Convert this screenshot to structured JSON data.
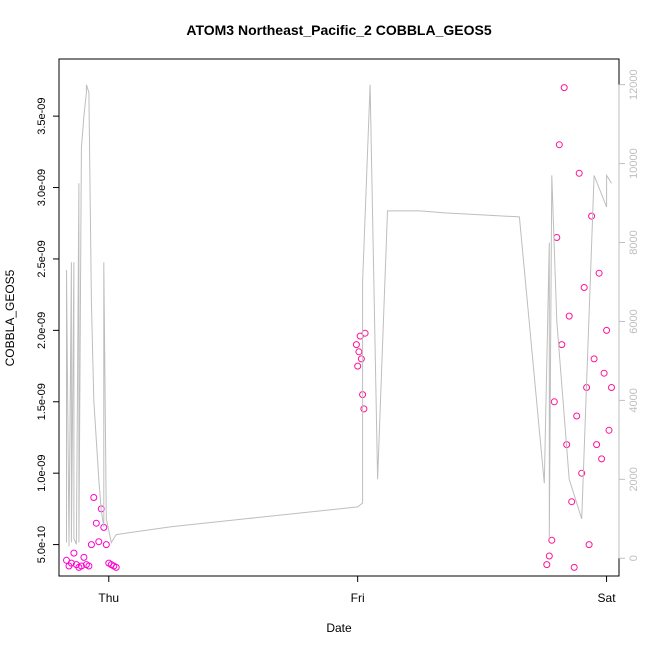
{
  "chart_data": {
    "type": "scatter",
    "title": "ATOM3 Northeast_Pacific_2 COBBLA_GEOS5",
    "xlabel": "Date",
    "ylabel": "COBBLA_GEOS5",
    "x_ticks": [
      "Thu",
      "Fri",
      "Sat"
    ],
    "y_left_ticks": [
      "5.0e-10",
      "1.0e-09",
      "1.5e-09",
      "2.0e-09",
      "2.5e-09",
      "3.0e-09",
      "3.5e-09"
    ],
    "y_right_ticks": [
      "0",
      "2000",
      "4000",
      "6000",
      "8000",
      "10000",
      "12000"
    ],
    "x_range_days": [
      -0.2,
      2.05
    ],
    "ylim_left": [
      2.8e-10,
      3.9e-09
    ],
    "ylim_right": [
      -450,
      12650
    ],
    "grid": false,
    "colors": {
      "points_pink": "#ff1493",
      "points_magenta": "#ff00cc",
      "altitude_line": "#bebebe",
      "axis": "#000000",
      "right_axis": "#bebebe"
    },
    "series": [
      {
        "kind": "points",
        "x_days": [
          -0.17,
          -0.16,
          -0.15,
          -0.14,
          -0.13,
          -0.12,
          -0.11,
          -0.1,
          -0.09,
          -0.08,
          -0.07,
          -0.06,
          -0.05,
          -0.04,
          -0.03,
          -0.02,
          -0.01,
          0.0,
          0.01,
          0.02,
          0.03
        ],
        "y": [
          3.9e-10,
          3.5e-10,
          3.7e-10,
          4.4e-10,
          3.6e-10,
          3.4e-10,
          3.5e-10,
          4.1e-10,
          3.6e-10,
          3.5e-10,
          5e-10,
          8.3e-10,
          6.5e-10,
          5.2e-10,
          7.5e-10,
          6.2e-10,
          5e-10,
          3.7e-10,
          3.6e-10,
          3.5e-10,
          3.4e-10
        ]
      },
      {
        "kind": "points",
        "x_days": [
          0.995,
          1.0,
          1.005,
          1.01,
          1.015,
          1.02,
          1.025,
          1.03
        ],
        "y": [
          1.9e-09,
          1.75e-09,
          1.85e-09,
          1.96e-09,
          1.8e-09,
          1.55e-09,
          1.45e-09,
          1.98e-09
        ]
      },
      {
        "kind": "points",
        "x_days": [
          1.76,
          1.77,
          1.78,
          1.79,
          1.8,
          1.81,
          1.82,
          1.83,
          1.84,
          1.85,
          1.86,
          1.87,
          1.88,
          1.89,
          1.9,
          1.91,
          1.92,
          1.93,
          1.94,
          1.95,
          1.96,
          1.97,
          1.98,
          1.99,
          2.0,
          2.01,
          2.02
        ],
        "y": [
          3.6e-10,
          4.2e-10,
          5.3e-10,
          1.5e-09,
          2.65e-09,
          3.3e-09,
          1.9e-09,
          3.7e-09,
          1.2e-09,
          2.1e-09,
          8e-10,
          3.4e-10,
          1.4e-09,
          3.1e-09,
          1e-09,
          2.3e-09,
          1.6e-09,
          5e-10,
          2.8e-09,
          1.8e-09,
          1.2e-09,
          2.4e-09,
          1.1e-09,
          1.7e-09,
          2e-09,
          1.3e-09,
          1.6e-09
        ]
      },
      {
        "kind": "line",
        "x_days": [
          -0.17,
          -0.17,
          -0.16,
          -0.16,
          -0.15,
          -0.15,
          -0.14,
          -0.14,
          -0.13,
          -0.12,
          -0.12,
          -0.11,
          -0.1,
          -0.09,
          -0.09,
          -0.08,
          -0.07,
          -0.06,
          -0.05,
          -0.04,
          -0.03,
          -0.02,
          -0.02,
          -0.01,
          0.01,
          0.03,
          0.25,
          0.55,
          0.85,
          1.0,
          1.02,
          1.02,
          1.05,
          1.08,
          1.12,
          1.16,
          1.2,
          1.25,
          1.35,
          1.5,
          1.65,
          1.75,
          1.77,
          1.77,
          1.78,
          1.8,
          1.85,
          1.9,
          1.95,
          2.0,
          2.0,
          2.02
        ],
        "y": [
          400,
          7300,
          300,
          400,
          7500,
          400,
          7500,
          500,
          350,
          9500,
          400,
          10400,
          11200,
          11800,
          12000,
          11800,
          6500,
          4000,
          3000,
          2000,
          1200,
          800,
          7500,
          1000,
          400,
          600,
          800,
          1000,
          1200,
          1300,
          1400,
          7000,
          12000,
          2000,
          8800,
          8800,
          8800,
          8800,
          8750,
          8700,
          8650,
          1900,
          8000,
          500,
          9700,
          6000,
          2000,
          1000,
          9700,
          8900,
          9700,
          9500
        ]
      }
    ]
  }
}
